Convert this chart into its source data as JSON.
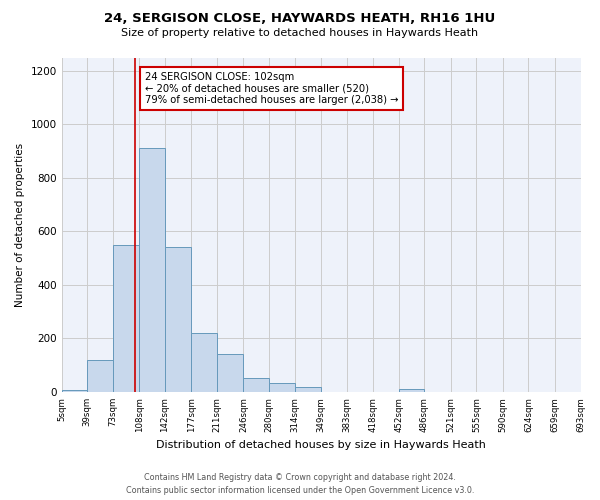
{
  "title_line1": "24, SERGISON CLOSE, HAYWARDS HEATH, RH16 1HU",
  "title_line2": "Size of property relative to detached houses in Haywards Heath",
  "xlabel": "Distribution of detached houses by size in Haywards Heath",
  "ylabel": "Number of detached properties",
  "bar_color": "#c8d8ec",
  "bar_edge_color": "#6699bb",
  "grid_color": "#cccccc",
  "background_color": "#eef2fa",
  "bin_edges": [
    5,
    39,
    73,
    108,
    142,
    177,
    211,
    246,
    280,
    314,
    349,
    383,
    418,
    452,
    486,
    521,
    555,
    590,
    624,
    659,
    693
  ],
  "bar_heights": [
    8,
    120,
    550,
    910,
    540,
    220,
    140,
    52,
    33,
    20,
    0,
    0,
    0,
    10,
    0,
    0,
    0,
    0,
    0,
    0
  ],
  "property_size": 102,
  "vline_color": "#cc0000",
  "annotation_line1": "24 SERGISON CLOSE: 102sqm",
  "annotation_line2": "← 20% of detached houses are smaller (520)",
  "annotation_line3": "79% of semi-detached houses are larger (2,038) →",
  "annotation_box_color": "#cc0000",
  "ylim": [
    0,
    1250
  ],
  "yticks": [
    0,
    200,
    400,
    600,
    800,
    1000,
    1200
  ],
  "footer_text": "Contains HM Land Registry data © Crown copyright and database right 2024.\nContains public sector information licensed under the Open Government Licence v3.0.",
  "tick_labels": [
    "5sqm",
    "39sqm",
    "73sqm",
    "108sqm",
    "142sqm",
    "177sqm",
    "211sqm",
    "246sqm",
    "280sqm",
    "314sqm",
    "349sqm",
    "383sqm",
    "418sqm",
    "452sqm",
    "486sqm",
    "521sqm",
    "555sqm",
    "590sqm",
    "624sqm",
    "659sqm",
    "693sqm"
  ]
}
